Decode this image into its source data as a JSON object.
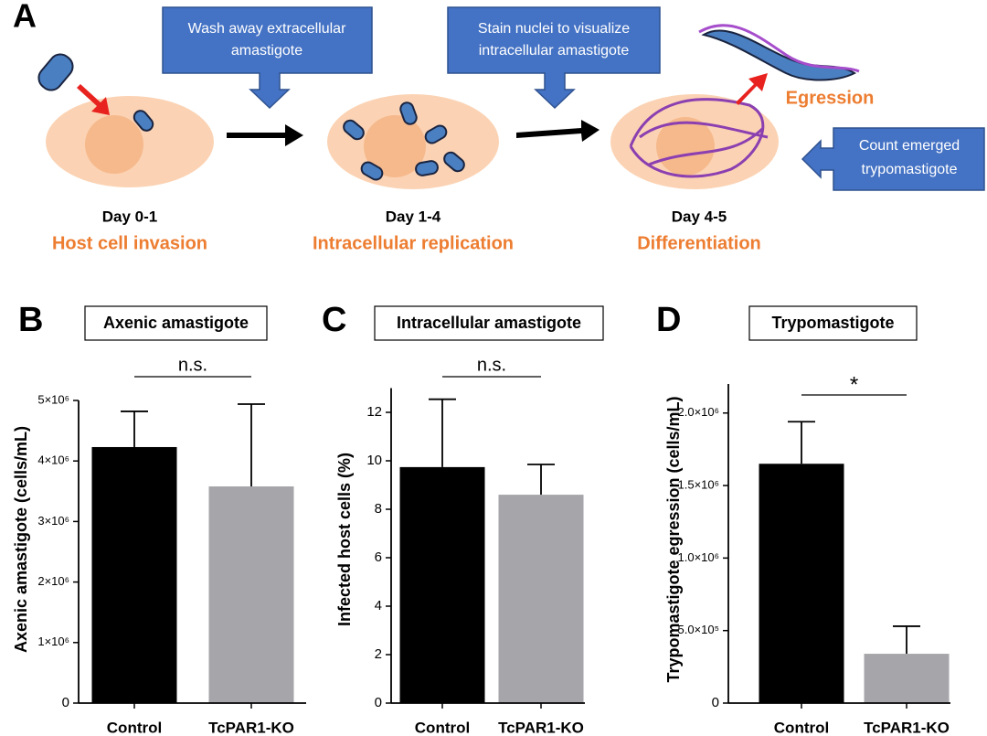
{
  "diagram": {
    "panel": "A",
    "callouts": [
      [
        "Wash away extracellular",
        "amastigote"
      ],
      [
        "Stain nuclei to visualize",
        "intracellular amastigote"
      ],
      [
        "Count emerged",
        "trypomastigote"
      ]
    ],
    "egression": "Egression",
    "stages": [
      {
        "day": "Day 0-1",
        "label": "Host cell invasion"
      },
      {
        "day": "Day 1-4",
        "label": "Intracellular replication"
      },
      {
        "day": "Day 4-5",
        "label": "Differentiation"
      }
    ]
  },
  "chart_data": [
    {
      "type": "bar",
      "panel": "B",
      "title": "Axenic amastigote",
      "ylabel": "Axenic amastigote (cells/mL)",
      "categories": [
        "Control",
        "TcPAR1-KO"
      ],
      "values": [
        4230000,
        3580000
      ],
      "errors": [
        590000,
        1360000
      ],
      "colors": [
        "#000000",
        "#a6a6aa"
      ],
      "annotation": "n.s.",
      "ylim": [
        0,
        5000000
      ],
      "yticks": [
        0,
        {
          "value": 1000000,
          "label": "1×10⁶"
        },
        {
          "value": 2000000,
          "label": "2×10⁶"
        },
        {
          "value": 3000000,
          "label": "3×10⁶"
        },
        {
          "value": 4000000,
          "label": "4×10⁶"
        },
        {
          "value": 5000000,
          "label": "5×10⁶"
        }
      ]
    },
    {
      "type": "bar",
      "panel": "C",
      "title": "Intracellular amastigote",
      "ylabel": "Infected host cells (%)",
      "categories": [
        "Control",
        "TcPAR1-KO"
      ],
      "values": [
        9.74,
        8.6
      ],
      "errors": [
        2.8,
        1.25
      ],
      "colors": [
        "#000000",
        "#a6a6aa"
      ],
      "annotation": "n.s.",
      "ylim": [
        0,
        13
      ],
      "yticks": [
        0,
        2,
        4,
        6,
        8,
        10,
        12
      ]
    },
    {
      "type": "bar",
      "panel": "D",
      "title": "Trypomastigote",
      "ylabel": "Trypomastigote egression (cells/mL)",
      "categories": [
        "Control",
        "TcPAR1-KO"
      ],
      "values": [
        1650000,
        340000
      ],
      "errors": [
        290000,
        190000
      ],
      "colors": [
        "#000000",
        "#a6a6aa"
      ],
      "annotation": "*",
      "ylim": [
        0,
        2200000
      ],
      "yticks": [
        0,
        {
          "value": 500000,
          "label": "5.0×10⁵"
        },
        {
          "value": 1000000,
          "label": "1.0×10⁶"
        },
        {
          "value": 1500000,
          "label": "1.5×10⁶"
        },
        {
          "value": 2000000,
          "label": "2.0×10⁶"
        }
      ]
    }
  ]
}
